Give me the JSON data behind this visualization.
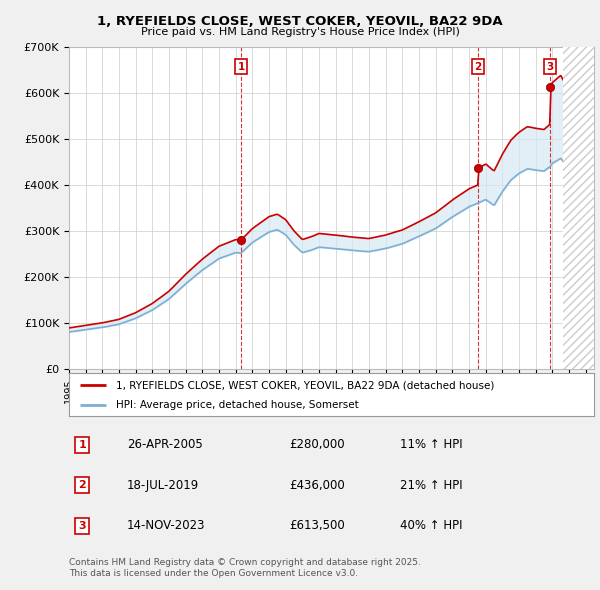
{
  "title_line1": "1, RYEFIELDS CLOSE, WEST COKER, YEOVIL, BA22 9DA",
  "title_line2": "Price paid vs. HM Land Registry's House Price Index (HPI)",
  "ylim": [
    0,
    700000
  ],
  "yticks": [
    0,
    100000,
    200000,
    300000,
    400000,
    500000,
    600000,
    700000
  ],
  "ytick_labels": [
    "£0",
    "£100K",
    "£200K",
    "£300K",
    "£400K",
    "£500K",
    "£600K",
    "£700K"
  ],
  "xlim_start": 1995.0,
  "xlim_end": 2026.5,
  "sales": [
    {
      "num": 1,
      "date": "26-APR-2005",
      "price": 280000,
      "pct": "11%",
      "year": 2005.32
    },
    {
      "num": 2,
      "date": "18-JUL-2019",
      "price": 436000,
      "pct": "21%",
      "year": 2019.54
    },
    {
      "num": 3,
      "date": "14-NOV-2023",
      "price": 613500,
      "pct": "40%",
      "year": 2023.87
    }
  ],
  "property_color": "#cc0000",
  "hpi_color": "#7bafd4",
  "hpi_fill_color": "#d6e8f5",
  "legend_property_label": "1, RYEFIELDS CLOSE, WEST COKER, YEOVIL, BA22 9DA (detached house)",
  "legend_hpi_label": "HPI: Average price, detached house, Somerset",
  "footer_line1": "Contains HM Land Registry data © Crown copyright and database right 2025.",
  "footer_line2": "This data is licensed under the Open Government Licence v3.0.",
  "background_color": "#f0f0f0",
  "plot_background": "#ffffff",
  "grid_color": "#cccccc"
}
